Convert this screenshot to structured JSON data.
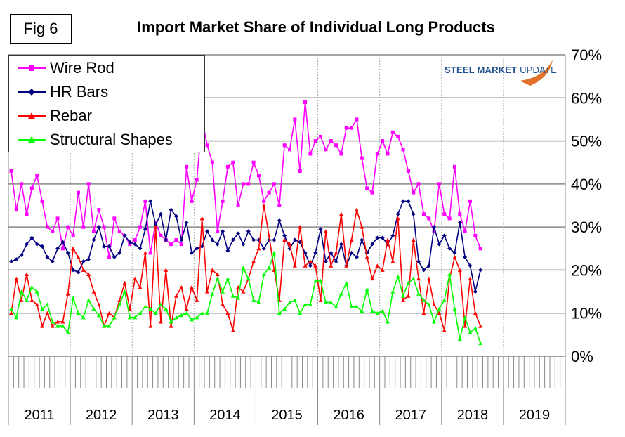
{
  "figure_label": "Fig 6",
  "logo_text": {
    "bold": "STEEL MARKET",
    "light": " UPDATE"
  },
  "chart_data": {
    "type": "line",
    "title": "Import Market Share of Individual Long Products",
    "xlabel": "",
    "ylabel": "",
    "ylim": [
      0,
      70
    ],
    "yticks": [
      "0%",
      "10%",
      "20%",
      "30%",
      "40%",
      "50%",
      "60%",
      "70%"
    ],
    "y_axis_side": "right",
    "x_frequency": "monthly",
    "x_start": "2011-01",
    "years": [
      "2011",
      "2012",
      "2013",
      "2014",
      "2015",
      "2016",
      "2017",
      "2018",
      "2019"
    ],
    "grid": "horizontal solid, vertical dotted at year boundaries",
    "legend_placement": "top-left",
    "series": [
      {
        "name": "Wire Rod",
        "color": "#ff00ff",
        "marker": "square",
        "values": [
          43,
          34,
          40,
          33,
          39,
          42,
          36,
          30,
          29,
          32,
          25,
          30,
          28,
          38,
          30,
          40,
          29,
          34,
          30,
          23,
          32,
          29,
          28,
          26,
          27,
          30,
          36,
          24,
          31,
          28,
          27,
          26,
          27,
          26,
          44,
          36,
          41,
          55,
          49,
          45,
          29,
          36,
          44,
          45,
          35,
          40,
          40,
          45,
          42,
          36,
          38,
          40,
          35,
          49,
          48,
          55,
          43,
          59,
          47,
          50,
          51,
          48,
          50,
          49,
          47,
          53,
          53,
          55,
          46,
          39,
          38,
          47,
          50,
          47,
          52,
          51,
          48,
          43,
          38,
          40,
          33,
          32,
          29,
          40,
          33,
          32,
          44,
          33,
          29,
          36,
          28,
          25
        ]
      },
      {
        "name": "HR Bars",
        "color": "#000080",
        "marker": "diamond",
        "values": [
          22,
          22.5,
          23.5,
          26,
          27.5,
          26,
          25.5,
          23,
          22,
          25,
          26.5,
          24,
          20,
          19.5,
          22,
          22.5,
          27,
          30,
          25.5,
          25.5,
          23,
          24,
          28,
          26.5,
          26,
          25,
          29.5,
          36,
          30.5,
          33,
          27,
          34,
          32.5,
          27,
          31,
          24,
          25,
          25.5,
          29,
          27,
          26,
          29,
          24.5,
          27,
          28.5,
          26,
          29,
          27,
          27,
          25,
          27,
          27,
          31.5,
          28,
          25,
          27,
          26.5,
          24,
          21,
          24,
          29.5,
          22,
          24,
          22,
          26,
          21,
          24,
          23,
          27,
          24,
          26,
          27.5,
          27.5,
          26,
          28,
          33,
          36,
          36,
          33,
          22,
          20,
          21,
          30,
          26,
          28,
          25,
          24,
          31,
          23,
          21,
          15,
          20
        ]
      },
      {
        "name": "Rebar",
        "color": "#ff0000",
        "marker": "triangle",
        "values": [
          10,
          18,
          13,
          19,
          13,
          12,
          7,
          10,
          7,
          8,
          8,
          14.5,
          25,
          23,
          20,
          19,
          15,
          12,
          7,
          10,
          9,
          13,
          17,
          11,
          18,
          16,
          24,
          7,
          30,
          8,
          20,
          7,
          14,
          16,
          11,
          16,
          13,
          32,
          15,
          20,
          19,
          12,
          10,
          6,
          16,
          15,
          18,
          22,
          25,
          35,
          28,
          20,
          13,
          27,
          26,
          21,
          30,
          21,
          22,
          21,
          13,
          29,
          21,
          24,
          33,
          21,
          27,
          34,
          30,
          23,
          18,
          21,
          20,
          27,
          22,
          32,
          13,
          14,
          27,
          18,
          10,
          18,
          12,
          10,
          6,
          18,
          23,
          20,
          7,
          18,
          10,
          7
        ]
      },
      {
        "name": "Structural Shapes",
        "color": "#00ff00",
        "marker": "triangle",
        "values": [
          11,
          9,
          15,
          13,
          16,
          15,
          11,
          12,
          8,
          7,
          7,
          5.5,
          13.5,
          10,
          9,
          13,
          11,
          9.5,
          7,
          7,
          9,
          12,
          15,
          9,
          9,
          10,
          11.5,
          11,
          10,
          12,
          11,
          8,
          9,
          9.5,
          10,
          8.5,
          9,
          10,
          10,
          14.5,
          18,
          15,
          18,
          14,
          13.5,
          20.5,
          18,
          13,
          12.5,
          19,
          20.5,
          24,
          10,
          11,
          12.5,
          13,
          10,
          12,
          12,
          17.5,
          17.5,
          12.5,
          12.5,
          11.5,
          14.5,
          17,
          11.5,
          11.5,
          10.5,
          15.5,
          10.5,
          10,
          10.5,
          8,
          15,
          18.5,
          14,
          17,
          18,
          14.5,
          13,
          12,
          8,
          11,
          13,
          19,
          11,
          4,
          9,
          5.5,
          6.5,
          3
        ]
      }
    ]
  }
}
